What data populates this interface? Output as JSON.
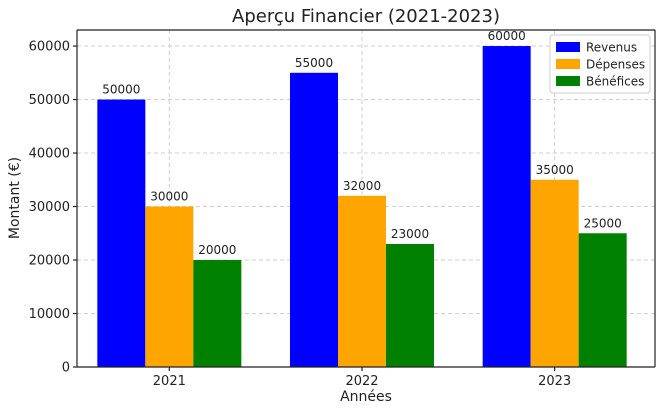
{
  "chart_data": {
    "type": "bar",
    "title": "Aperçu Financier (2021-2023)",
    "xlabel": "Années",
    "ylabel": "Montant (€)",
    "categories": [
      "2021",
      "2022",
      "2023"
    ],
    "series": [
      {
        "name": "Revenus",
        "color": "#0000ff",
        "values": [
          50000,
          55000,
          60000
        ]
      },
      {
        "name": "Dépenses",
        "color": "#ffa500",
        "values": [
          30000,
          32000,
          35000
        ]
      },
      {
        "name": "Bénéfices",
        "color": "#008000",
        "values": [
          20000,
          23000,
          25000
        ]
      }
    ],
    "ylim": [
      0,
      63000
    ],
    "yticks": [
      0,
      10000,
      20000,
      30000,
      40000,
      50000,
      60000
    ],
    "ytick_labels": [
      "0",
      "10000",
      "20000",
      "30000",
      "40000",
      "50000",
      "60000"
    ],
    "data_labels": [
      [
        "50000",
        "55000",
        "60000"
      ],
      [
        "30000",
        "32000",
        "35000"
      ],
      [
        "20000",
        "23000",
        "25000"
      ]
    ],
    "grid": true,
    "legend_position": "top-right"
  }
}
